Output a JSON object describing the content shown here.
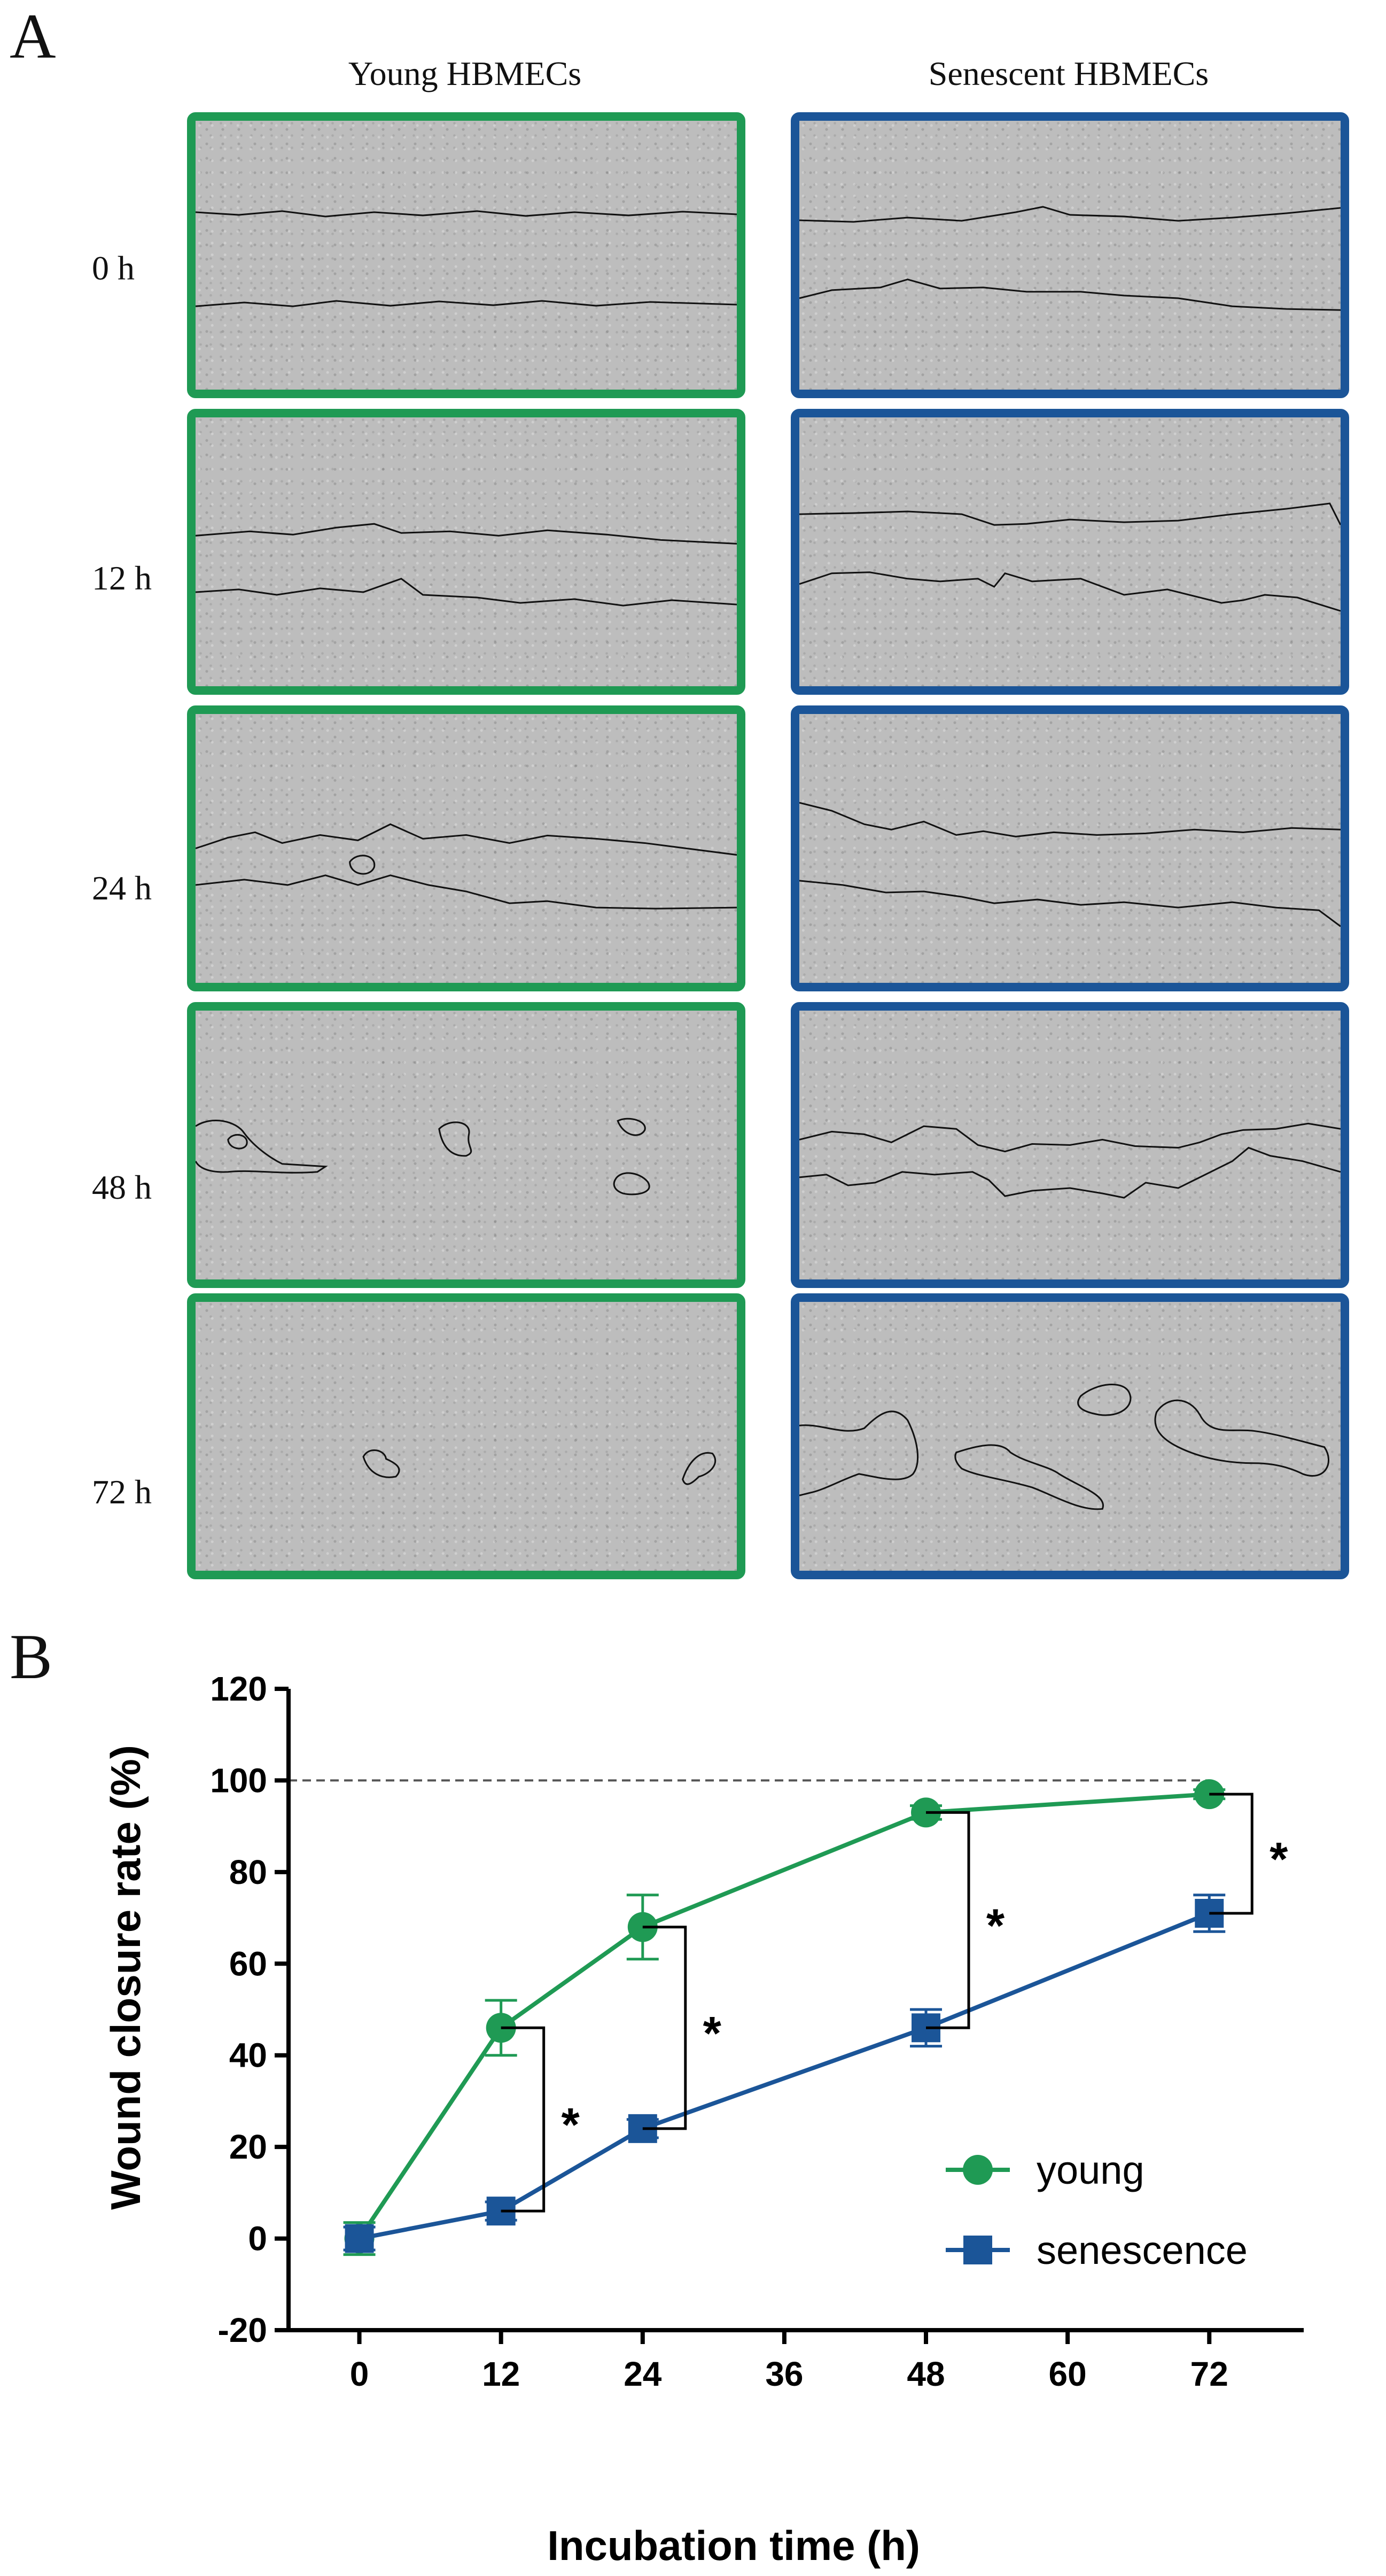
{
  "panel_a": {
    "letter": "A",
    "columns": [
      "Young HBMECs",
      "Senescent HBMECs"
    ],
    "rows": [
      "0 h",
      "12 h",
      "24 h",
      "48 h",
      "72 h"
    ],
    "colors": {
      "young": "#1f9a54",
      "senescent": "#1b5598"
    }
  },
  "panel_b": {
    "letter": "B"
  },
  "chart_data": {
    "type": "line",
    "xlabel": "Incubation time (h)",
    "ylabel": "Wound closure rate (%)",
    "x": [
      0,
      12,
      24,
      48,
      72
    ],
    "xticks": [
      0,
      12,
      24,
      36,
      48,
      60,
      72
    ],
    "xlim": [
      -6,
      80
    ],
    "ylim": [
      -20,
      120
    ],
    "yticks": [
      -20,
      0,
      20,
      40,
      60,
      80,
      100,
      120
    ],
    "reference_line": 100,
    "series": [
      {
        "name": "young",
        "values": [
          0,
          46,
          68,
          93,
          97
        ],
        "errors": [
          3.5,
          6,
          7,
          1.5,
          1
        ],
        "color": "#1f9a54",
        "marker": "circle"
      },
      {
        "name": "senescence",
        "values": [
          0,
          6,
          24,
          46,
          71
        ],
        "errors": [
          2.5,
          2,
          2,
          4,
          4
        ],
        "color": "#1b5598",
        "marker": "square"
      }
    ],
    "significance": [
      {
        "x": 12,
        "label": "*"
      },
      {
        "x": 24,
        "label": "*"
      },
      {
        "x": 48,
        "label": "*"
      },
      {
        "x": 72,
        "label": "*"
      }
    ],
    "legend_position": "center-right"
  }
}
